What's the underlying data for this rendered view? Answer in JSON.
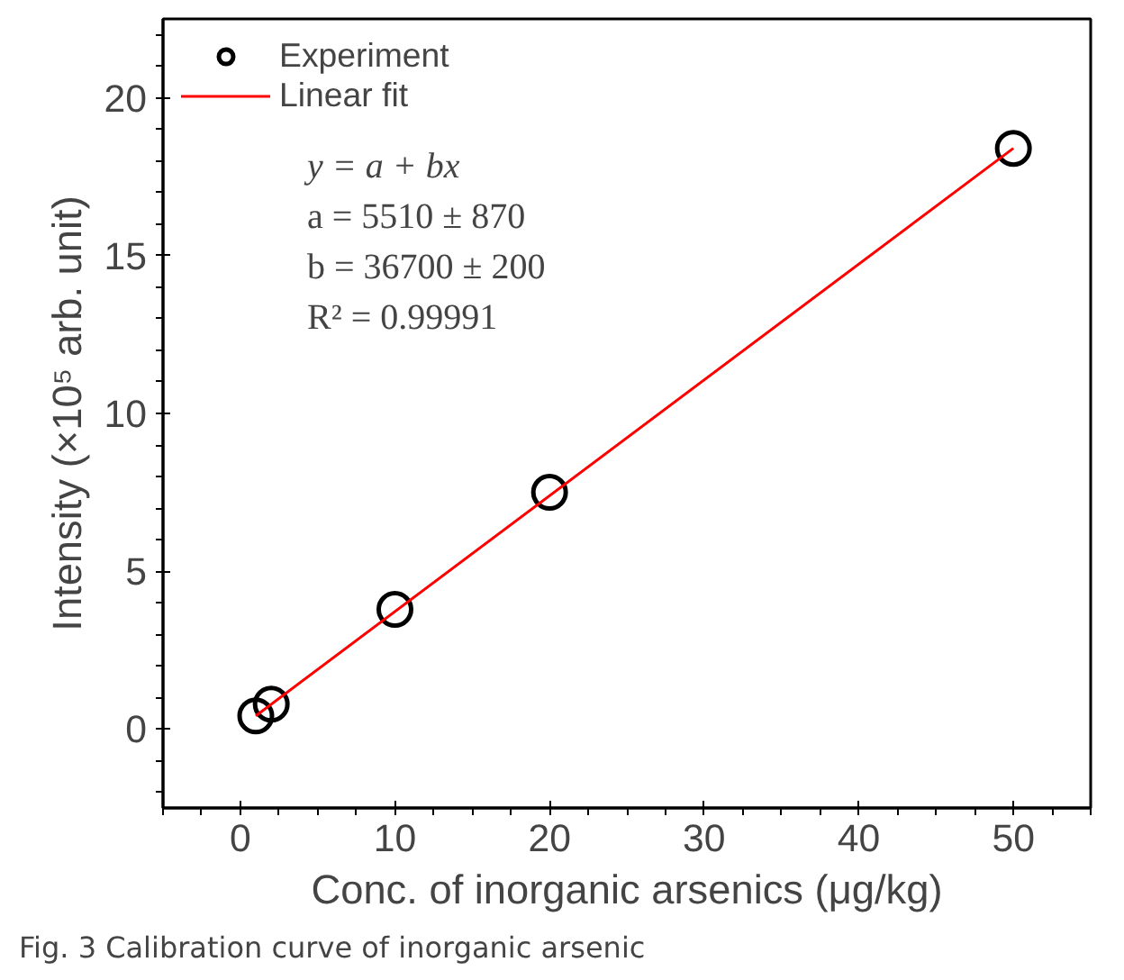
{
  "chart_data": {
    "type": "scatter",
    "xlabel": "Conc. of inorganic arsenics (μg/kg)",
    "ylabel": "Intensity (×10⁵ arb. unit)",
    "series": [
      {
        "name": "Experiment",
        "color": "#000000",
        "marker": "circle",
        "x": [
          1,
          2,
          10,
          20,
          50
        ],
        "values": [
          0.42,
          0.79,
          3.79,
          7.5,
          18.4
        ]
      },
      {
        "name": "Linear fit",
        "type": "line",
        "color": "#ff0000",
        "line_style": "solid",
        "x": [
          1,
          50
        ],
        "values": [
          0.42,
          18.4
        ]
      }
    ],
    "xlim": [
      -5,
      55
    ],
    "xticks": [
      0,
      10,
      20,
      30,
      40,
      50
    ],
    "ylim": [
      -2.5,
      22.5
    ],
    "yticks": [
      0,
      5,
      10,
      15,
      20
    ],
    "grid": false,
    "legend": "top left",
    "annotations": [
      "y = a + bx",
      "a = 5510 ± 870",
      "b = 36700 ± 200",
      "R² = 0.99991",
      "Fig. 3  Calibration curve of inorganic arsenic"
    ]
  }
}
